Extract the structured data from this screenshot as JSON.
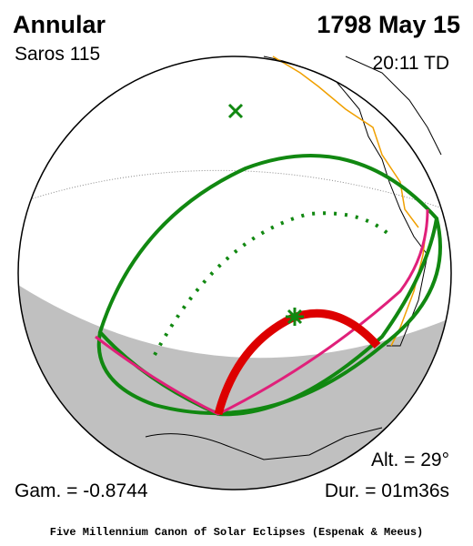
{
  "header": {
    "type": "Annular",
    "saros": "Saros 115",
    "date": "1798 May 15",
    "time": "20:11 TD"
  },
  "stats": {
    "altitude": "Alt. = 29°",
    "gamma": "Gam. = -0.8744",
    "duration": "Dur. = 01m36s"
  },
  "footer": "Five Millennium Canon of Solar Eclipses (Espenak & Meeus)"
}
